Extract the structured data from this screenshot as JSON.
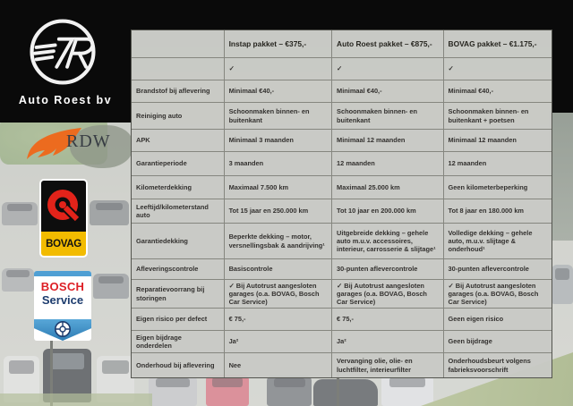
{
  "branding": {
    "dealer_name": "Auto Roest bv",
    "rdw_label": "RDW",
    "bovag_label": "BOVAG",
    "bosch_label": "BOSCH",
    "bosch_service_label": "Service"
  },
  "table": {
    "headers": [
      "Instap pakket – €375,-",
      "Auto Roest pakket – €875,-",
      "BOVAG pakket – €1.175,-"
    ],
    "rows": [
      {
        "label": "",
        "cells": [
          "✓",
          "✓",
          "✓"
        ]
      },
      {
        "label": "Brandstof bij aflevering",
        "cells": [
          "Minimaal €40,-",
          "Minimaal €40,-",
          "Minimaal €40,-"
        ]
      },
      {
        "label": "Reiniging auto",
        "cells": [
          "Schoonmaken binnen- en buitenkant",
          "Schoonmaken binnen- en buitenkant",
          "Schoonmaken binnen- en buitenkant + poetsen"
        ]
      },
      {
        "label": "APK",
        "cells": [
          "Minimaal 3 maanden",
          "Minimaal 12 maanden",
          "Minimaal 12 maanden"
        ]
      },
      {
        "label": "Garantieperiode",
        "cells": [
          "3 maanden",
          "12 maanden",
          "12 maanden"
        ]
      },
      {
        "label": "Kilometerdekking",
        "cells": [
          "Maximaal 7.500 km",
          "Maximaal 25.000 km",
          "Geen kilometerbeperking"
        ]
      },
      {
        "label": "Leeftijd/kilometerstand auto",
        "cells": [
          "Tot 15 jaar en 250.000 km",
          "Tot 10 jaar en 200.000 km",
          "Tot 8 jaar en 180.000 km"
        ]
      },
      {
        "label": "Garantiedekking",
        "cells": [
          "Beperkte dekking – motor, versnellingsbak & aandrijving¹",
          "Uitgebreide dekking – gehele auto m.u.v. accessoires, interieur, carrosserie & slijtage¹",
          "Volledige dekking – gehele auto, m.u.v. slijtage & onderhoud¹"
        ]
      },
      {
        "label": "Afleveringscontrole",
        "cells": [
          "Basiscontrole",
          "30-punten aflevercontrole",
          "30-punten aflevercontrole"
        ]
      },
      {
        "label": "Reparatievoorrang bij storingen",
        "cells": [
          "✓ Bij Autotrust aangesloten garages (o.a. BOVAG, Bosch Car Service)",
          "✓ Bij Autotrust aangesloten garages (o.a. BOVAG, Bosch Car Service)",
          "✓ Bij Autotrust aangesloten garages (o.a. BOVAG, Bosch Car Service)"
        ]
      },
      {
        "label": "Eigen risico per defect",
        "cells": [
          "€ 75,-",
          "€ 75,-",
          "Geen eigen risico"
        ]
      },
      {
        "label": "Eigen bijdrage onderdelen",
        "cells": [
          "Ja²",
          "Ja²",
          "Geen bijdrage"
        ]
      },
      {
        "label": "Onderhoud bij aflevering",
        "cells": [
          "Nee",
          "Vervanging olie, olie- en luchtfilter, interieurfilter",
          "Onderhoudsbeurt volgens fabrieksvoorschrift"
        ]
      }
    ]
  },
  "colors": {
    "text": "#33312f",
    "table_bg": "#c8c9c5",
    "table_border": "#85867f",
    "rdw_orange": "#ec6b1f",
    "bovag_red": "#e2231a",
    "bovag_yellow": "#f2bb00",
    "bosch_red": "#dd1f26",
    "bosch_blue": "#4f9fd4",
    "bosch_navy": "#1d3c6e"
  }
}
